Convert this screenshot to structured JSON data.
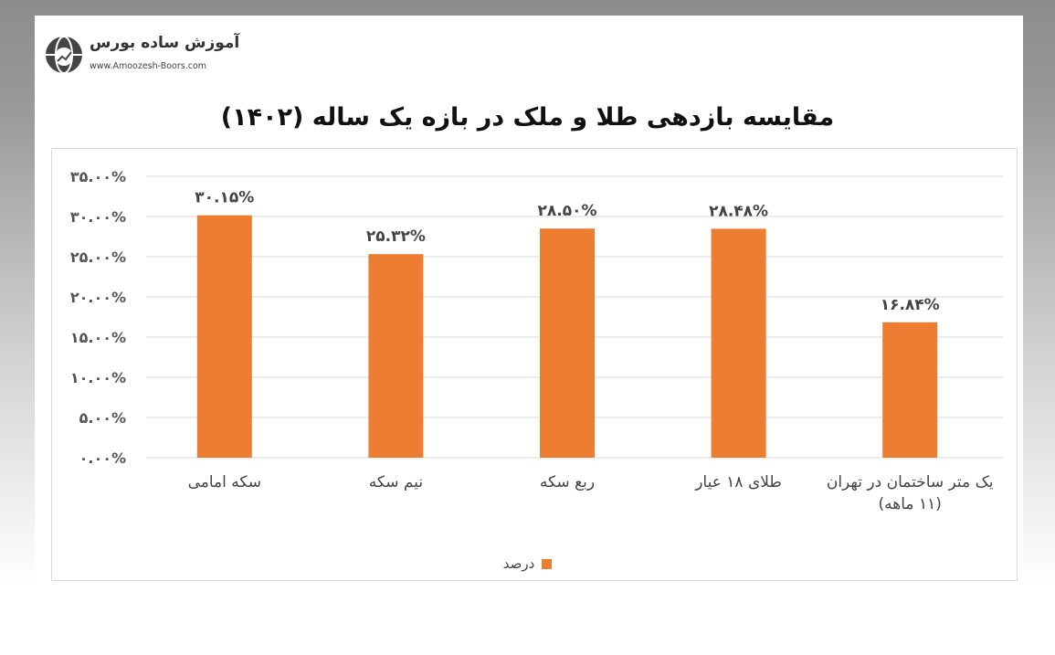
{
  "logo": {
    "name": "آموزش ساده بورس",
    "url": "www.Amoozesh-Boors.com"
  },
  "chart_data": {
    "type": "bar",
    "title": "مقایسه بازدهی طلا و ملک در بازه یک ساله (۱۴۰۲)",
    "categories": [
      "سکه امامی",
      "نیم سکه",
      "ربع سکه",
      "طلای ۱۸ عیار",
      "یک متر ساختمان در تهران (۱۱ ماهه)"
    ],
    "series": [
      {
        "name": "درصد",
        "values": [
          30.15,
          25.32,
          28.5,
          28.48,
          16.84
        ],
        "color": "#ed7d31"
      }
    ],
    "data_labels": [
      "۳۰.۱۵%",
      "۲۵.۳۲%",
      "۲۸.۵۰%",
      "۲۸.۴۸%",
      "۱۶.۸۴%"
    ],
    "ylim": [
      0,
      35
    ],
    "yticks": [
      0,
      5,
      10,
      15,
      20,
      25,
      30,
      35
    ],
    "ytick_labels": [
      "۰.۰۰%",
      "۵.۰۰%",
      "۱۰.۰۰%",
      "۱۵.۰۰%",
      "۲۰.۰۰%",
      "۲۵.۰۰%",
      "۳۰.۰۰%",
      "۳۵.۰۰%"
    ],
    "grid": true,
    "legend": "bottom",
    "xlabel": "",
    "ylabel": ""
  }
}
